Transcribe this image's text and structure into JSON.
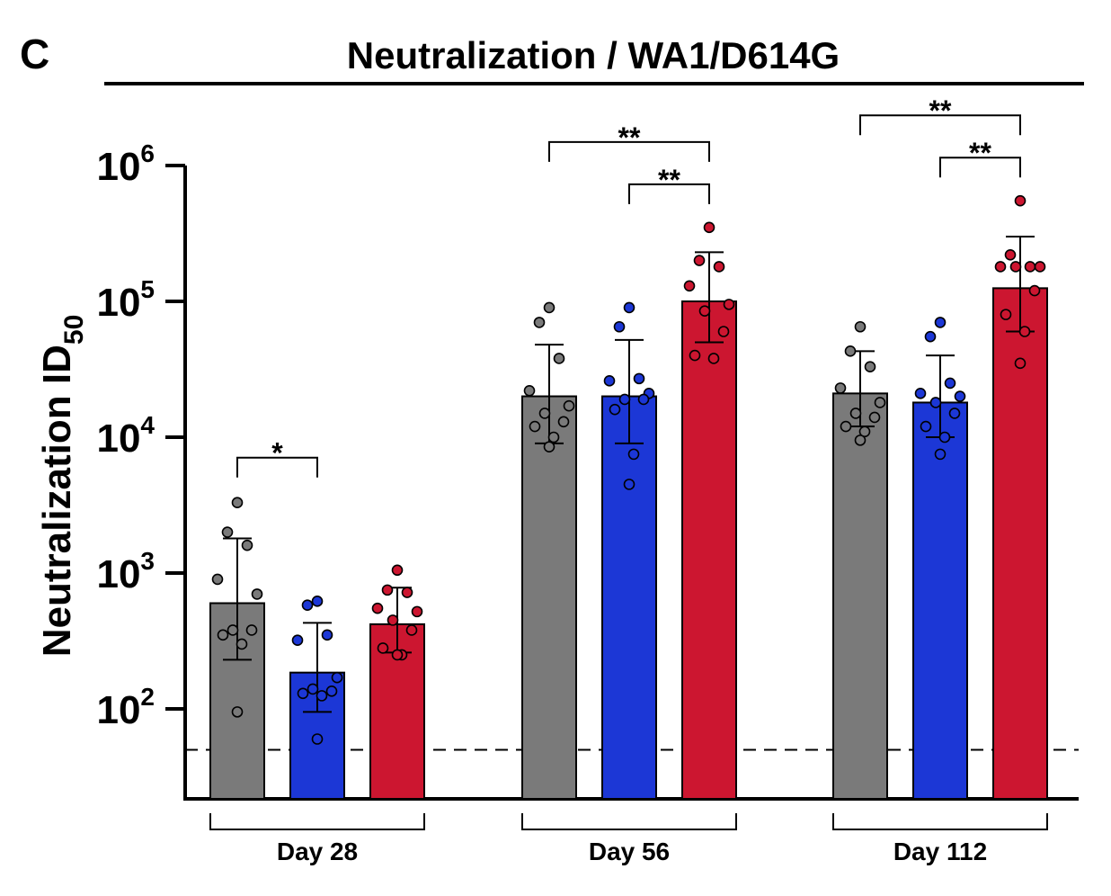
{
  "panel_letter": "C",
  "chart_data": {
    "type": "bar",
    "title": "Neutralization / WA1/D614G",
    "ylabel": "Neutralization ID",
    "ylabel_subscript": "50",
    "yscale": "log",
    "ylim": [
      20,
      2000000
    ],
    "yticks": [
      {
        "value": 100,
        "base": "10",
        "exp": "2"
      },
      {
        "value": 1000,
        "base": "10",
        "exp": "3"
      },
      {
        "value": 10000,
        "base": "10",
        "exp": "4"
      },
      {
        "value": 100000,
        "base": "10",
        "exp": "5"
      },
      {
        "value": 1000000,
        "base": "10",
        "exp": "6"
      }
    ],
    "detection_limit": 50,
    "series_colors": [
      "#7a7a7a",
      "#1c37d6",
      "#cc1630"
    ],
    "groups": [
      {
        "label": "Day 28",
        "bars": [
          {
            "value": 600,
            "err_low": 230,
            "err_high": 1800,
            "points": [
              3300,
              2000,
              1600,
              900,
              700,
              380,
              380,
              350,
              300,
              95
            ]
          },
          {
            "value": 185,
            "err_low": 95,
            "err_high": 430,
            "points": [
              620,
              580,
              350,
              320,
              170,
              140,
              135,
              130,
              125,
              60
            ]
          },
          {
            "value": 420,
            "err_low": 260,
            "err_high": 780,
            "points": [
              1050,
              750,
              720,
              550,
              520,
              450,
              380,
              280,
              250,
              250
            ]
          }
        ],
        "comparisons": [
          {
            "from": 0,
            "to": 1,
            "label": "*"
          }
        ]
      },
      {
        "label": "Day 56",
        "bars": [
          {
            "value": 20000,
            "err_low": 9000,
            "err_high": 48000,
            "points": [
              90000,
              70000,
              38000,
              22000,
              17000,
              15000,
              13000,
              12000,
              10000,
              8500
            ]
          },
          {
            "value": 20000,
            "err_low": 9000,
            "err_high": 52000,
            "points": [
              90000,
              65000,
              27000,
              26000,
              21000,
              19000,
              19000,
              16000,
              7500,
              4500
            ]
          },
          {
            "value": 100000,
            "err_low": 50000,
            "err_high": 230000,
            "points": [
              350000,
              200000,
              180000,
              130000,
              95000,
              85000,
              60000,
              40000,
              38000
            ]
          }
        ],
        "comparisons": [
          {
            "from": 0,
            "to": 2,
            "label": "**"
          },
          {
            "from": 1,
            "to": 2,
            "label": "**"
          }
        ]
      },
      {
        "label": "Day 112",
        "bars": [
          {
            "value": 21000,
            "err_low": 12000,
            "err_high": 43000,
            "points": [
              65000,
              43000,
              33000,
              23000,
              18000,
              15000,
              14000,
              12000,
              11000,
              9500
            ]
          },
          {
            "value": 18000,
            "err_low": 10000,
            "err_high": 40000,
            "points": [
              70000,
              55000,
              25000,
              21000,
              20000,
              18000,
              15000,
              12000,
              10000,
              7500
            ]
          },
          {
            "value": 125000,
            "err_low": 60000,
            "err_high": 300000,
            "points": [
              550000,
              220000,
              180000,
              180000,
              180000,
              180000,
              120000,
              80000,
              60000,
              35000
            ]
          }
        ],
        "comparisons": [
          {
            "from": 0,
            "to": 2,
            "label": "**"
          },
          {
            "from": 1,
            "to": 2,
            "label": "**"
          }
        ]
      }
    ]
  }
}
